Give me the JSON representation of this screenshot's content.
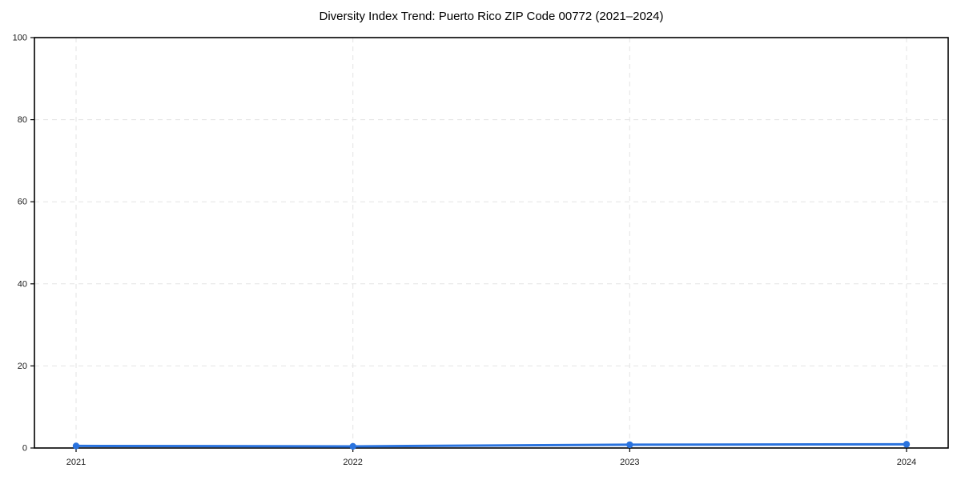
{
  "chart_data": {
    "type": "line",
    "title": "Diversity Index Trend: Puerto Rico ZIP Code 00772 (2021–2024)",
    "categories": [
      "2021",
      "2022",
      "2023",
      "2024"
    ],
    "series": [
      {
        "name": "Diversity Index",
        "values": [
          0.5,
          0.4,
          0.8,
          0.9
        ],
        "color": "#2a73de",
        "marker": "circle"
      }
    ],
    "xlabel": "",
    "ylabel": "",
    "ylim": [
      0,
      100
    ],
    "yticks": [
      0,
      20,
      40,
      60,
      80,
      100
    ],
    "grid": true,
    "grid_style": "dashed",
    "legend_position": "none"
  },
  "styles": {
    "background_color": "#ffffff",
    "grid_color": "#e3e3e3",
    "axis_color": "#000000",
    "tick_label_color": "#1a1a1a",
    "title_color": "#000000",
    "line_color": "#2a73de"
  }
}
